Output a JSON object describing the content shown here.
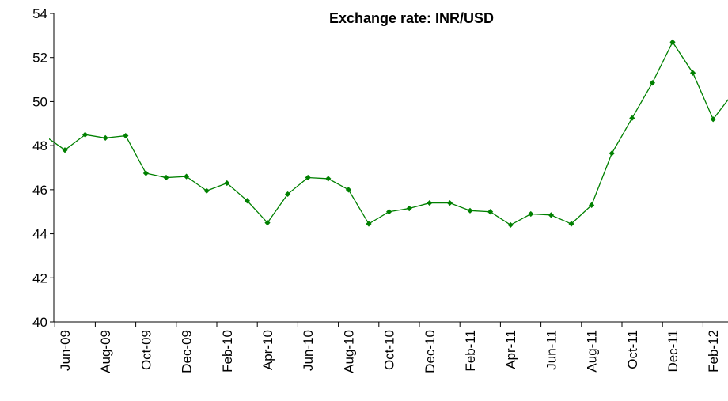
{
  "chart_data": {
    "type": "line",
    "title": "Exchange rate: INR/USD",
    "categories": [
      null,
      "Jun-09",
      null,
      "Aug-09",
      null,
      "Oct-09",
      null,
      "Dec-09",
      null,
      "Feb-10",
      null,
      "Apr-10",
      null,
      "Jun-10",
      null,
      "Aug-10",
      null,
      "Oct-10",
      null,
      "Dec-10",
      null,
      "Feb-11",
      null,
      "Apr-11",
      null,
      "Jun-11",
      null,
      "Aug-11",
      null,
      "Oct-11",
      null,
      "Dec-11",
      null,
      "Feb-12",
      null
    ],
    "series": [
      {
        "name": "INR/USD",
        "color": "#008000",
        "values": [
          48.45,
          47.8,
          48.5,
          48.35,
          48.45,
          46.75,
          46.55,
          46.6,
          45.95,
          46.3,
          45.5,
          44.5,
          45.8,
          46.55,
          46.5,
          46.0,
          44.45,
          45.0,
          45.15,
          45.4,
          45.4,
          45.05,
          45.0,
          44.4,
          44.9,
          44.85,
          44.45,
          45.3,
          47.65,
          49.25,
          50.85,
          52.7,
          51.3,
          49.2,
          50.4
        ]
      }
    ],
    "ylim": [
      40,
      54
    ],
    "yticks": [
      40,
      42,
      44,
      46,
      48,
      50,
      52,
      54
    ],
    "grid": false
  }
}
